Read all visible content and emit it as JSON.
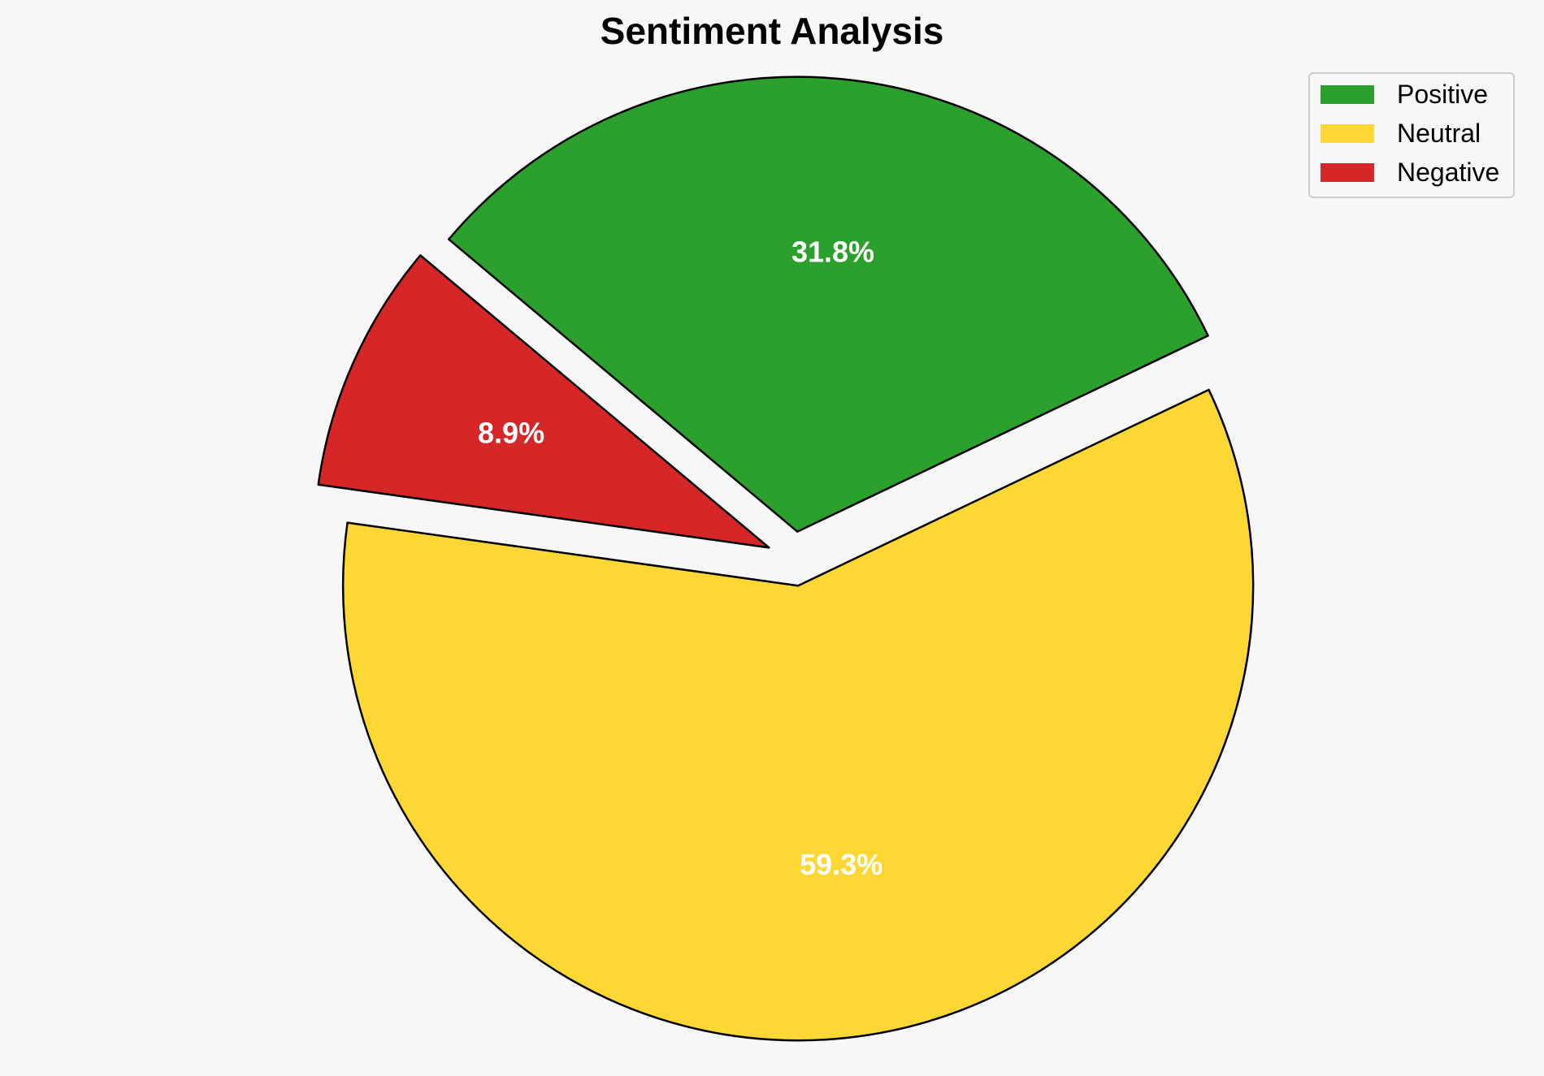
{
  "chart_data": {
    "type": "pie",
    "title": "Sentiment Analysis",
    "slices": [
      {
        "label": "Positive",
        "value": 31.8,
        "display": "31.8%",
        "color": "#2ca02c",
        "exploded": true
      },
      {
        "label": "Neutral",
        "value": 59.3,
        "display": "59.3%",
        "color": "#fdd835",
        "exploded": true
      },
      {
        "label": "Negative",
        "value": 8.9,
        "display": "8.9%",
        "color": "#d62728",
        "exploded": true
      }
    ],
    "legend": {
      "position": "top-right",
      "entries": [
        "Positive",
        "Neutral",
        "Negative"
      ]
    },
    "edge_color": "#000000",
    "label_color": "#ffffff",
    "start_angle_deg": 140,
    "direction": "clockwise"
  }
}
